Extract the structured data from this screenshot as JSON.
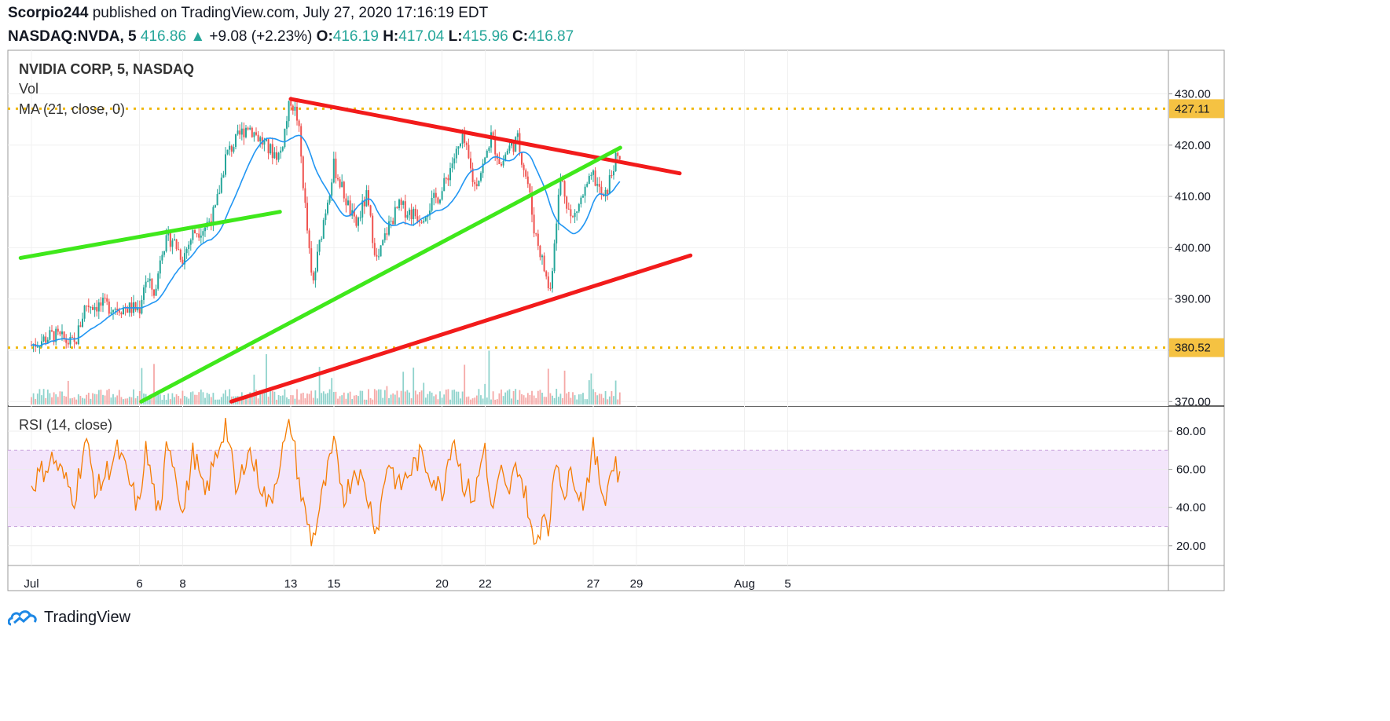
{
  "header": {
    "author": "Scorpio244",
    "published": "published on TradingView.com, July 27, 2020 17:16:19 EDT",
    "symbol": "NASDAQ:NVDA, 5",
    "last": "416.86",
    "change": "+9.08 (+2.23%)",
    "o_label": "O:",
    "o": "416.19",
    "h_label": "H:",
    "h": "417.04",
    "l_label": "L:",
    "l": "415.96",
    "c_label": "C:",
    "c": "416.87"
  },
  "legend": {
    "title": "NVIDIA CORP, 5, NASDAQ",
    "vol": "Vol",
    "ma": "MA (21, close, 0)",
    "rsi": "RSI (14, close)"
  },
  "footer": {
    "brand": "TradingView"
  },
  "colors": {
    "up": "#26a69a",
    "down": "#ef5350",
    "ma": "#2196f3",
    "rsi": "#f57c00",
    "rsi_band": "#f3e5fb",
    "level_line": "#f0b80a",
    "level_label_bg": "#f5c242",
    "trend_red": "#f21b1b",
    "trend_green": "#3fe81b"
  },
  "chart_data": [
    {
      "type": "candlestick",
      "title": "NVIDIA CORP, 5, NASDAQ",
      "ylim": [
        370,
        432
      ],
      "price_ticks": [
        "430.00",
        "420.00",
        "410.00",
        "400.00",
        "390.00",
        "380.00",
        "370.00"
      ],
      "date_ticks": [
        {
          "label": "Jul",
          "date": "2020-07-01"
        },
        {
          "label": "6",
          "date": "2020-07-06"
        },
        {
          "label": "8",
          "date": "2020-07-08"
        },
        {
          "label": "13",
          "date": "2020-07-13"
        },
        {
          "label": "15",
          "date": "2020-07-15"
        },
        {
          "label": "20",
          "date": "2020-07-20"
        },
        {
          "label": "22",
          "date": "2020-07-22"
        },
        {
          "label": "27",
          "date": "2020-07-27"
        },
        {
          "label": "29",
          "date": "2020-07-29"
        },
        {
          "label": "Aug",
          "date": "2020-08-03"
        },
        {
          "label": "5",
          "date": "2020-08-05"
        }
      ],
      "price_path": [
        [
          "2020-07-01",
          381
        ],
        [
          "2020-07-02",
          383
        ],
        [
          "2020-07-03",
          381
        ],
        [
          "2020-07-03 12:00",
          389
        ],
        [
          "2020-07-06",
          388
        ],
        [
          "2020-07-06 06:00",
          394
        ],
        [
          "2020-07-06 18:00",
          391
        ],
        [
          "2020-07-07",
          400
        ],
        [
          "2020-07-07 12:00",
          402
        ],
        [
          "2020-07-08",
          398
        ],
        [
          "2020-07-08 12:00",
          403
        ],
        [
          "2020-07-09",
          404
        ],
        [
          "2020-07-09 12:00",
          407
        ],
        [
          "2020-07-10",
          418
        ],
        [
          "2020-07-10 12:00",
          421
        ],
        [
          "2020-07-11",
          424
        ],
        [
          "2020-07-12",
          419
        ],
        [
          "2020-07-12 12:00",
          418
        ],
        [
          "2020-07-13",
          429
        ],
        [
          "2020-07-13 08:00",
          425
        ],
        [
          "2020-07-13 16:00",
          408
        ],
        [
          "2020-07-14",
          392
        ],
        [
          "2020-07-14 12:00",
          405
        ],
        [
          "2020-07-15",
          416
        ],
        [
          "2020-07-15 12:00",
          410
        ],
        [
          "2020-07-16",
          404
        ],
        [
          "2020-07-16 12:00",
          410
        ],
        [
          "2020-07-17",
          397
        ],
        [
          "2020-07-17 12:00",
          404
        ],
        [
          "2020-07-18",
          408
        ],
        [
          "2020-07-19",
          406
        ],
        [
          "2020-07-20",
          411
        ],
        [
          "2020-07-20 12:00",
          417
        ],
        [
          "2020-07-21",
          421
        ],
        [
          "2020-07-21 12:00",
          412
        ],
        [
          "2020-07-22",
          417
        ],
        [
          "2020-07-22 06:00",
          422
        ],
        [
          "2020-07-22 18:00",
          416
        ],
        [
          "2020-07-23",
          419
        ],
        [
          "2020-07-23 12:00",
          421
        ],
        [
          "2020-07-24",
          412
        ],
        [
          "2020-07-24 06:00",
          404
        ],
        [
          "2020-07-24 12:00",
          400
        ],
        [
          "2020-07-25",
          391
        ],
        [
          "2020-07-25 06:00",
          404
        ],
        [
          "2020-07-25 12:00",
          414
        ],
        [
          "2020-07-26",
          405
        ],
        [
          "2020-07-26 12:00",
          410
        ],
        [
          "2020-07-27",
          414
        ],
        [
          "2020-07-27 12:00",
          409
        ],
        [
          "2020-07-28",
          417
        ],
        [
          "2020-07-28 06:00",
          416.87
        ]
      ],
      "levels": [
        427.11,
        380.52
      ],
      "level_labels": [
        "427.11",
        "380.52"
      ],
      "trendlines": [
        {
          "color": "red",
          "points": [
            [
              "2020-07-13",
              429
            ],
            [
              "2020-07-31",
              414.5
            ]
          ]
        },
        {
          "color": "red",
          "points": [
            [
              "2020-07-10 06:00",
              370
            ],
            [
              "2020-07-31 12:00",
              398.5
            ]
          ]
        },
        {
          "color": "green",
          "points": [
            [
              "2020-06-30 12:00",
              398
            ],
            [
              "2020-07-12 12:00",
              407
            ]
          ]
        },
        {
          "color": "green",
          "points": [
            [
              "2020-07-06 02:00",
              370
            ],
            [
              "2020-07-28 06:00",
              419.5
            ]
          ]
        }
      ]
    },
    {
      "type": "line",
      "title": "RSI (14, close)",
      "ylim": [
        10,
        92
      ],
      "ticks": [
        "80.00",
        "60.00",
        "40.00",
        "20.00"
      ],
      "band": [
        30,
        70
      ],
      "midline": 50,
      "rsi_path": [
        [
          "2020-07-01",
          52
        ],
        [
          "2020-07-02",
          66
        ],
        [
          "2020-07-03",
          45
        ],
        [
          "2020-07-03 12:00",
          76
        ],
        [
          "2020-07-04",
          48
        ],
        [
          "2020-07-05",
          70
        ],
        [
          "2020-07-06",
          38
        ],
        [
          "2020-07-06 06:00",
          72
        ],
        [
          "2020-07-07",
          30
        ],
        [
          "2020-07-07 06:00",
          80
        ],
        [
          "2020-07-07 18:00",
          55
        ],
        [
          "2020-07-08",
          35
        ],
        [
          "2020-07-08 12:00",
          70
        ],
        [
          "2020-07-09",
          45
        ],
        [
          "2020-07-10",
          85
        ],
        [
          "2020-07-10 12:00",
          45
        ],
        [
          "2020-07-11",
          72
        ],
        [
          "2020-07-12",
          40
        ],
        [
          "2020-07-12 12:00",
          65
        ],
        [
          "2020-07-13",
          84
        ],
        [
          "2020-07-13 12:00",
          45
        ],
        [
          "2020-07-14",
          22
        ],
        [
          "2020-07-14 12:00",
          48
        ],
        [
          "2020-07-15",
          72
        ],
        [
          "2020-07-15 12:00",
          45
        ],
        [
          "2020-07-16",
          62
        ],
        [
          "2020-07-16 12:00",
          48
        ],
        [
          "2020-07-17",
          28
        ],
        [
          "2020-07-17 12:00",
          66
        ],
        [
          "2020-07-18",
          50
        ],
        [
          "2020-07-19",
          67
        ],
        [
          "2020-07-20",
          48
        ],
        [
          "2020-07-20 12:00",
          79
        ],
        [
          "2020-07-21",
          52
        ],
        [
          "2020-07-21 12:00",
          45
        ],
        [
          "2020-07-22",
          74
        ],
        [
          "2020-07-22 06:00",
          36
        ],
        [
          "2020-07-22 18:00",
          58
        ],
        [
          "2020-07-23",
          45
        ],
        [
          "2020-07-23 12:00",
          63
        ],
        [
          "2020-07-24",
          40
        ],
        [
          "2020-07-24 06:00",
          17
        ],
        [
          "2020-07-24 18:00",
          40
        ],
        [
          "2020-07-25",
          28
        ],
        [
          "2020-07-25 06:00",
          68
        ],
        [
          "2020-07-25 18:00",
          45
        ],
        [
          "2020-07-26",
          62
        ],
        [
          "2020-07-26 12:00",
          42
        ],
        [
          "2020-07-27",
          70
        ],
        [
          "2020-07-27 12:00",
          45
        ],
        [
          "2020-07-28",
          66
        ],
        [
          "2020-07-28 06:00",
          52
        ]
      ]
    }
  ]
}
